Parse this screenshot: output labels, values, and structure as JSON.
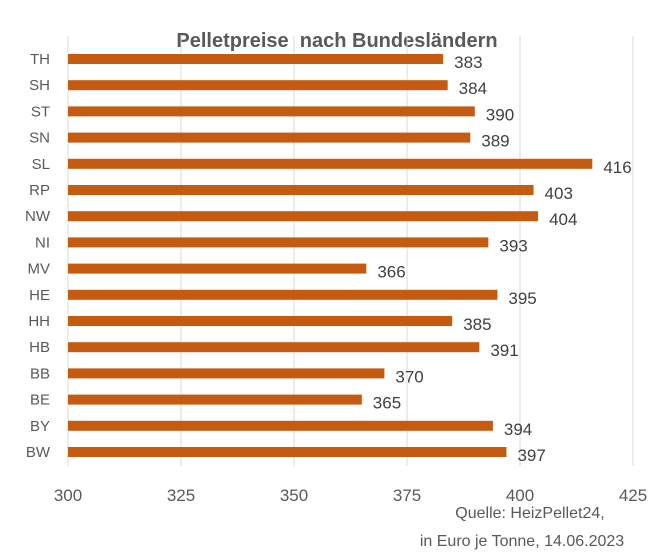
{
  "chart_data": {
    "type": "bar",
    "orientation": "horizontal",
    "title": "Pelletpreise  nach Bundesländern",
    "categories": [
      "TH",
      "SH",
      "ST",
      "SN",
      "SL",
      "RP",
      "NW",
      "NI",
      "MV",
      "HE",
      "HH",
      "HB",
      "BB",
      "BE",
      "BY",
      "BW"
    ],
    "values": [
      383,
      384,
      390,
      389,
      416,
      403,
      404,
      393,
      366,
      395,
      385,
      391,
      370,
      365,
      394,
      397
    ],
    "xlim": [
      300,
      425
    ],
    "xticks": [
      300,
      325,
      350,
      375,
      400,
      425
    ],
    "grid": true,
    "xlabel": "",
    "ylabel": "",
    "bar_color": "#c55a11",
    "source_lines": [
      "Quelle: HeizPellet24,",
      "in Euro je Tonne, 14.06.2023"
    ]
  }
}
